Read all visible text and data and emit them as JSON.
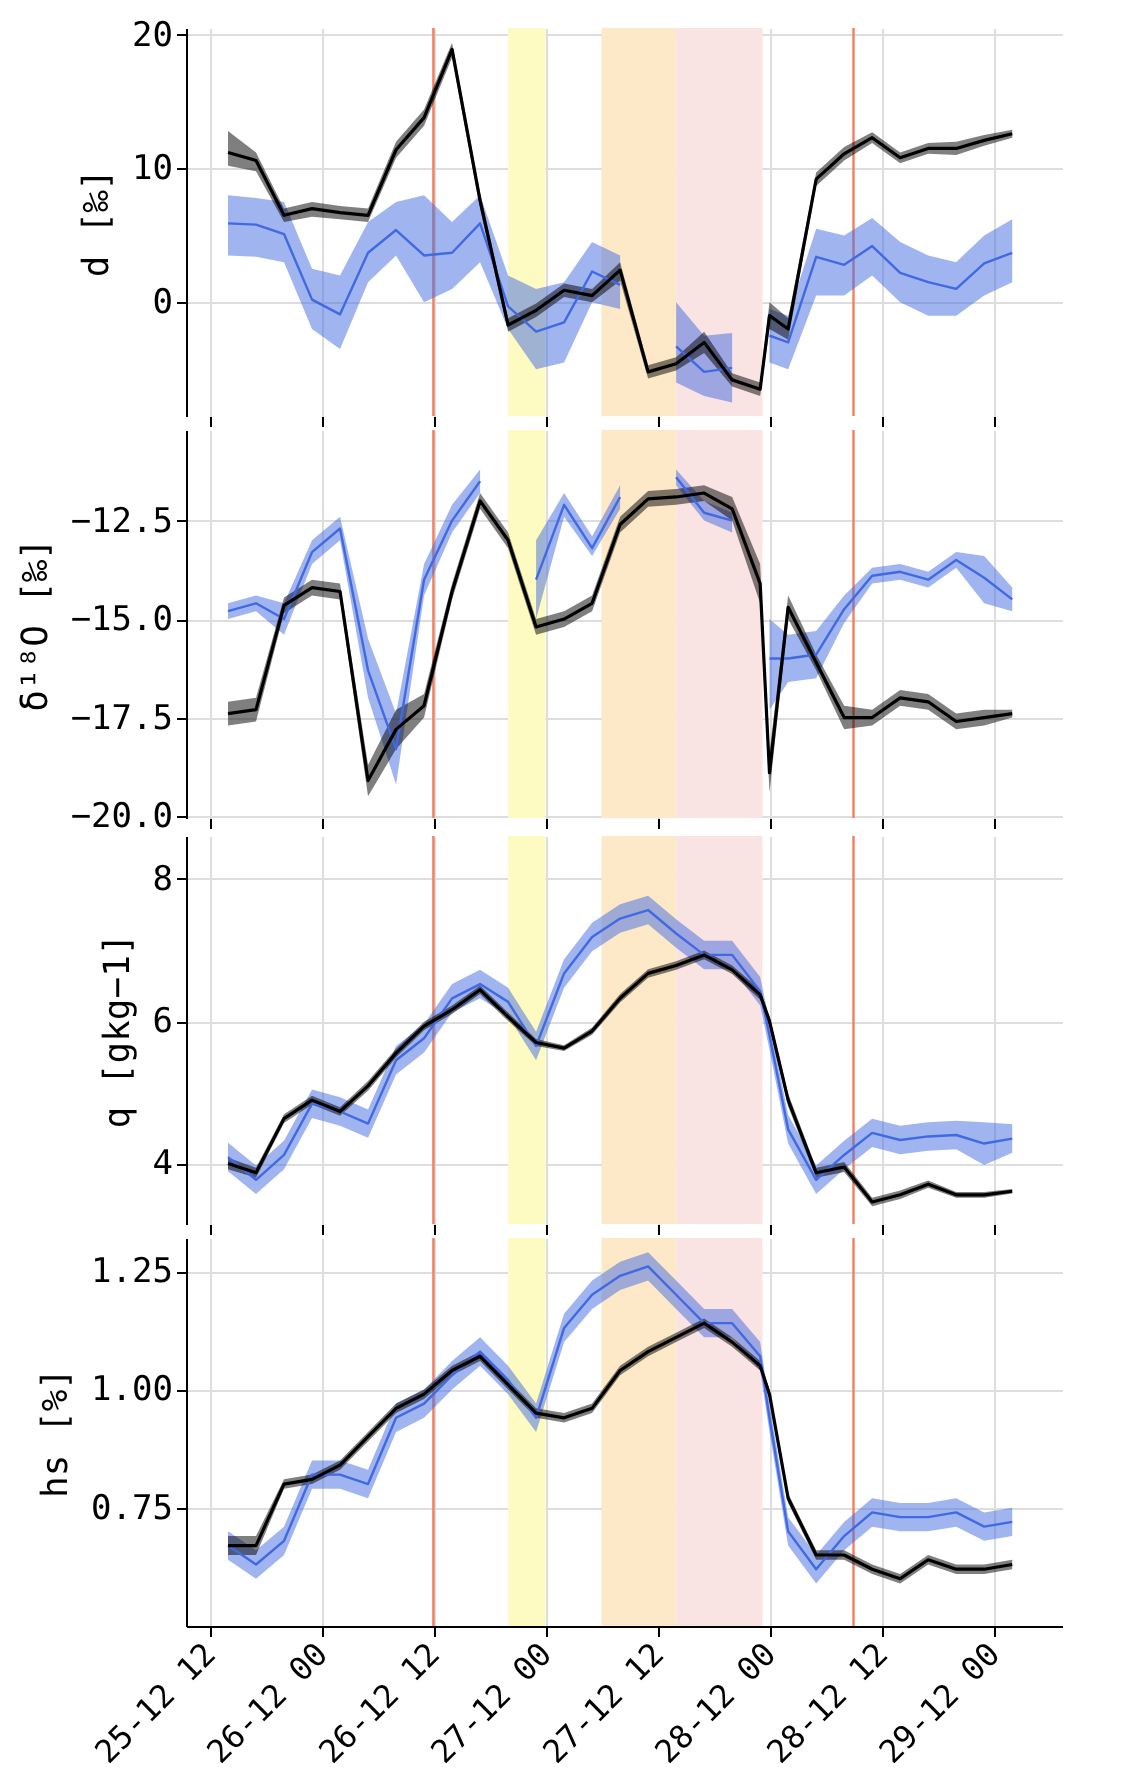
{
  "chart_data": [
    {
      "type": "line",
      "ylabel": "d [‰]",
      "tick_labels": "y",
      "grid": true,
      "x": [
        "--12-25T14:00",
        "--12-25T17:00",
        "--12-25T20:00",
        "--12-25T23:00",
        "--12-26T02:00",
        "--12-26T05:00",
        "--12-26T08:00",
        "--12-26T11:00",
        "--12-26T14:00",
        "--12-26T17:00",
        "--12-26T20:00",
        "--12-26T23:00",
        "--12-27T02:00",
        "--12-27T05:00",
        "--12-27T08:00",
        "--12-27T11:00",
        "--12-27T14:00",
        "--12-27T17:00",
        "--12-27T20:00",
        "--12-27T23:00",
        "--12-28T00:00",
        "--12-28T02:00",
        "--12-28T05:00",
        "--12-28T08:00",
        "--12-28T11:00",
        "--12-28T14:00",
        "--12-28T17:00",
        "--12-28T20:00",
        "--12-28T23:00",
        "--12-29T02:00"
      ],
      "xlim": [
        "--12-25T09:30",
        "--12-29T07:20"
      ],
      "xticks": [
        {
          "value": "--12-25T12:00",
          "label": "25-12 12"
        },
        {
          "value": "--12-26T00:00",
          "label": "26-12 00"
        },
        {
          "value": "--12-26T12:00",
          "label": "26-12 12"
        },
        {
          "value": "--12-27T00:00",
          "label": "27-12 00"
        },
        {
          "value": "--12-27T12:00",
          "label": "27-12 12"
        },
        {
          "value": "--12-28T00:00",
          "label": "28-12 00"
        },
        {
          "value": "--12-28T12:00",
          "label": "28-12 12"
        },
        {
          "value": "--12-29T00:00",
          "label": "29-12 00"
        }
      ],
      "ylim": [
        -8.5,
        20.5
      ],
      "yticks": [
        0,
        10,
        20
      ],
      "ref_lines": [
        {
          "axis": "x",
          "value": "--12-26T12:00",
          "color": "#f08060"
        },
        {
          "axis": "x",
          "value": "--12-28T09:00",
          "color": "#f08060"
        }
      ],
      "bands": [
        {
          "axis": "x",
          "from": "--12-26T20:00",
          "to": "--12-27T00:00",
          "color": "#fdfbc2"
        },
        {
          "axis": "x",
          "from": "--12-27T06:00",
          "to": "--12-27T14:00",
          "color": "#fde8c8"
        },
        {
          "axis": "x",
          "from": "--12-27T14:00",
          "to": "--12-27T23:15",
          "color": "#fae3e3"
        }
      ],
      "series": [
        {
          "color": "#4169e1",
          "values": [
            5.9,
            5.8,
            5.1,
            0.2,
            -0.9,
            3.7,
            5.4,
            3.5,
            3.7,
            5.9,
            -0.3,
            -2.2,
            -1.5,
            2.3,
            1.3,
            null,
            -3.3,
            -5.2,
            -4.9,
            null,
            -2.5,
            -3.0,
            3.4,
            2.8,
            4.2,
            2.2,
            1.5,
            1.0,
            2.9,
            3.7
          ],
          "lower": [
            3.5,
            3.4,
            3.0,
            -2.0,
            -3.5,
            1.5,
            3.5,
            0.0,
            1.0,
            3.0,
            -2.0,
            -5.0,
            -4.5,
            0.0,
            -0.5,
            null,
            -6.0,
            -7.0,
            -7.5,
            null,
            -4.5,
            -5.0,
            0.5,
            0.5,
            2.0,
            0.0,
            -1.0,
            -1.0,
            0.5,
            1.5
          ],
          "upper": [
            8.0,
            7.8,
            7.5,
            2.5,
            2.0,
            6.0,
            7.5,
            8.0,
            6.0,
            8.0,
            2.0,
            1.0,
            1.5,
            4.5,
            3.5,
            null,
            0.0,
            -2.5,
            -2.3,
            null,
            -0.5,
            -1.0,
            5.5,
            5.0,
            6.3,
            4.5,
            3.5,
            3.0,
            5.0,
            6.2
          ]
        },
        {
          "color": "#000000",
          "values": [
            11.2,
            10.6,
            6.5,
            7.0,
            6.7,
            6.5,
            11.4,
            13.8,
            18.9,
            7.6,
            -1.7,
            -0.6,
            0.9,
            0.5,
            2.4,
            -5.2,
            -4.6,
            -3.0,
            -5.8,
            -6.5,
            -1.0,
            -2.0,
            9.2,
            11.1,
            12.3,
            10.8,
            11.5,
            11.5,
            12.1,
            12.6
          ],
          "lower": [
            10.2,
            9.8,
            6.0,
            6.4,
            6.2,
            6.0,
            10.8,
            13.2,
            18.3,
            7.0,
            -2.2,
            -1.1,
            0.4,
            0.0,
            1.6,
            -5.7,
            -5.1,
            -3.8,
            -6.3,
            -7.0,
            -2.0,
            -2.8,
            8.7,
            10.6,
            11.9,
            10.4,
            11.1,
            11.0,
            11.7,
            12.3
          ],
          "upper": [
            12.8,
            11.2,
            7.0,
            7.5,
            7.2,
            7.0,
            12.0,
            14.4,
            19.4,
            8.2,
            -1.2,
            -0.1,
            1.4,
            1.0,
            3.0,
            -4.7,
            -4.1,
            -2.2,
            -5.3,
            -6.0,
            0.0,
            -1.2,
            9.7,
            11.6,
            12.7,
            11.2,
            11.9,
            12.0,
            12.5,
            12.9
          ]
        }
      ]
    },
    {
      "type": "line",
      "ylabel": "δ¹⁸O [‰]",
      "tick_labels": "y",
      "grid": true,
      "x": [
        "--12-25T14:00",
        "--12-25T17:00",
        "--12-25T20:00",
        "--12-25T23:00",
        "--12-26T02:00",
        "--12-26T05:00",
        "--12-26T08:00",
        "--12-26T11:00",
        "--12-26T14:00",
        "--12-26T17:00",
        "--12-26T20:00",
        "--12-26T23:00",
        "--12-27T02:00",
        "--12-27T05:00",
        "--12-27T08:00",
        "--12-27T11:00",
        "--12-27T14:00",
        "--12-27T17:00",
        "--12-27T20:00",
        "--12-27T23:00",
        "--12-28T00:00",
        "--12-28T02:00",
        "--12-28T05:00",
        "--12-28T08:00",
        "--12-28T11:00",
        "--12-28T14:00",
        "--12-28T17:00",
        "--12-28T20:00",
        "--12-28T23:00",
        "--12-29T02:00"
      ],
      "xlim": [
        "--12-25T09:30",
        "--12-29T07:20"
      ],
      "xticks": [
        {
          "value": "--12-25T12:00",
          "label": "25-12 12"
        },
        {
          "value": "--12-26T00:00",
          "label": "26-12 00"
        },
        {
          "value": "--12-26T12:00",
          "label": "26-12 12"
        },
        {
          "value": "--12-27T00:00",
          "label": "27-12 00"
        },
        {
          "value": "--12-27T12:00",
          "label": "27-12 12"
        },
        {
          "value": "--12-28T00:00",
          "label": "28-12 00"
        },
        {
          "value": "--12-28T12:00",
          "label": "28-12 12"
        },
        {
          "value": "--12-29T00:00",
          "label": "29-12 00"
        }
      ],
      "ylim": [
        -20.05,
        -10.2
      ],
      "yticks": [
        {
          "value": -20,
          "label": "−20.0"
        },
        {
          "value": -17.5,
          "label": "−17.5"
        },
        {
          "value": -15,
          "label": "−15.0"
        },
        {
          "value": -12.5,
          "label": "−12.5"
        }
      ],
      "ref_lines": [
        {
          "axis": "x",
          "value": "--12-26T12:00",
          "color": "#f08060"
        },
        {
          "axis": "x",
          "value": "--12-28T09:00",
          "color": "#f08060"
        }
      ],
      "bands": [
        {
          "axis": "x",
          "from": "--12-26T20:00",
          "to": "--12-27T00:00",
          "color": "#fdfbc2"
        },
        {
          "axis": "x",
          "from": "--12-27T06:00",
          "to": "--12-27T14:00",
          "color": "#fde8c8"
        },
        {
          "axis": "x",
          "from": "--12-27T14:00",
          "to": "--12-27T23:15",
          "color": "#fae3e3"
        }
      ],
      "series": [
        {
          "color": "#4169e1",
          "values": [
            -14.8,
            -14.6,
            -15.0,
            -13.3,
            -12.7,
            -16.3,
            -18.3,
            -14.0,
            -12.5,
            -11.5,
            null,
            -14.0,
            -12.1,
            -13.2,
            -11.9,
            null,
            -11.4,
            -12.3,
            -12.5,
            null,
            -16.0,
            -16.0,
            -15.9,
            -14.75,
            -13.9,
            -13.8,
            -14.0,
            -13.5,
            -13.95,
            -14.5
          ],
          "lower": [
            -15.0,
            -14.8,
            -15.4,
            -13.6,
            -13.0,
            -17.0,
            -19.2,
            -14.4,
            -12.8,
            -11.8,
            null,
            -15.0,
            -12.4,
            -13.4,
            -12.2,
            null,
            -11.6,
            -12.5,
            -12.8,
            null,
            -17.3,
            -16.6,
            -16.5,
            -15.1,
            -14.1,
            -14.0,
            -14.2,
            -13.7,
            -14.6,
            -14.8
          ],
          "upper": [
            -14.6,
            -14.4,
            -14.6,
            -13.0,
            -12.4,
            -15.5,
            -17.4,
            -13.6,
            -12.1,
            -11.2,
            null,
            -13.0,
            -11.8,
            -12.9,
            -11.6,
            null,
            -11.2,
            -12.0,
            -12.3,
            null,
            -15.0,
            -15.4,
            -15.3,
            -14.4,
            -13.7,
            -13.6,
            -13.8,
            -13.3,
            -13.4,
            -14.2
          ]
        },
        {
          "color": "#000000",
          "values": [
            -17.4,
            -17.3,
            -14.65,
            -14.2,
            -14.3,
            -19.1,
            -17.8,
            -17.2,
            -14.3,
            -12.0,
            -13.0,
            -15.2,
            -15.0,
            -14.6,
            -12.6,
            -11.95,
            -11.9,
            -11.8,
            -12.2,
            -14.1,
            -18.9,
            -14.7,
            -16.1,
            -17.5,
            -17.5,
            -17.0,
            -17.1,
            -17.6,
            -17.5,
            -17.4
          ],
          "lower": [
            -17.7,
            -17.6,
            -14.85,
            -14.4,
            -14.5,
            -19.5,
            -18.3,
            -17.5,
            -14.5,
            -12.2,
            -13.2,
            -15.4,
            -15.2,
            -14.8,
            -12.8,
            -12.15,
            -12.1,
            -12.0,
            -12.5,
            -14.6,
            -19.4,
            -15.0,
            -16.3,
            -17.8,
            -17.7,
            -17.2,
            -17.3,
            -17.8,
            -17.7,
            -17.5
          ],
          "upper": [
            -17.1,
            -17.0,
            -14.45,
            -14.0,
            -14.1,
            -18.7,
            -17.3,
            -16.9,
            -14.1,
            -11.8,
            -12.8,
            -15.0,
            -14.8,
            -14.4,
            -12.4,
            -11.75,
            -11.7,
            -11.6,
            -11.9,
            -13.6,
            -18.4,
            -14.4,
            -15.9,
            -17.2,
            -17.3,
            -16.8,
            -16.9,
            -17.4,
            -17.3,
            -17.3
          ]
        }
      ]
    },
    {
      "type": "line",
      "ylabel": "q [gkg−1]",
      "tick_labels": "y",
      "grid": true,
      "x": [
        "--12-25T14:00",
        "--12-25T17:00",
        "--12-25T20:00",
        "--12-25T23:00",
        "--12-26T02:00",
        "--12-26T05:00",
        "--12-26T08:00",
        "--12-26T11:00",
        "--12-26T14:00",
        "--12-26T17:00",
        "--12-26T20:00",
        "--12-26T23:00",
        "--12-27T02:00",
        "--12-27T05:00",
        "--12-27T08:00",
        "--12-27T11:00",
        "--12-27T14:00",
        "--12-27T17:00",
        "--12-27T20:00",
        "--12-27T23:00",
        "--12-28T00:00",
        "--12-28T02:00",
        "--12-28T05:00",
        "--12-28T08:00",
        "--12-28T11:00",
        "--12-28T14:00",
        "--12-28T17:00",
        "--12-28T20:00",
        "--12-28T23:00",
        "--12-29T02:00"
      ],
      "xlim": [
        "--12-25T09:30",
        "--12-29T07:20"
      ],
      "xticks": [
        {
          "value": "--12-25T12:00",
          "label": "25-12 12"
        },
        {
          "value": "--12-26T00:00",
          "label": "26-12 00"
        },
        {
          "value": "--12-26T12:00",
          "label": "26-12 12"
        },
        {
          "value": "--12-27T00:00",
          "label": "27-12 00"
        },
        {
          "value": "--12-27T12:00",
          "label": "27-12 12"
        },
        {
          "value": "--12-28T00:00",
          "label": "28-12 00"
        },
        {
          "value": "--12-28T12:00",
          "label": "28-12 12"
        },
        {
          "value": "--12-29T00:00",
          "label": "29-12 00"
        }
      ],
      "ylim": [
        3.15,
        8.6
      ],
      "yticks": [
        4,
        6,
        8
      ],
      "ref_lines": [
        {
          "axis": "x",
          "value": "--12-26T12:00",
          "color": "#f08060"
        },
        {
          "axis": "x",
          "value": "--12-28T09:00",
          "color": "#f08060"
        }
      ],
      "bands": [
        {
          "axis": "x",
          "from": "--12-26T20:00",
          "to": "--12-27T00:00",
          "color": "#fdfbc2"
        },
        {
          "axis": "x",
          "from": "--12-27T06:00",
          "to": "--12-27T14:00",
          "color": "#fde8c8"
        },
        {
          "axis": "x",
          "from": "--12-27T14:00",
          "to": "--12-27T23:15",
          "color": "#fae3e3"
        }
      ],
      "series": [
        {
          "color": "#4169e1",
          "values": [
            4.09,
            3.77,
            4.12,
            4.84,
            4.73,
            4.56,
            5.45,
            5.76,
            6.32,
            6.52,
            6.27,
            5.65,
            6.67,
            7.18,
            7.44,
            7.56,
            7.23,
            6.93,
            6.93,
            6.42,
            5.8,
            4.48,
            3.77,
            4.12,
            4.43,
            4.33,
            4.38,
            4.4,
            4.28,
            4.35
          ],
          "lower": [
            3.89,
            3.57,
            3.92,
            4.64,
            4.53,
            4.36,
            5.25,
            5.56,
            6.12,
            6.32,
            6.07,
            5.45,
            6.47,
            6.98,
            7.24,
            7.36,
            7.03,
            6.73,
            6.73,
            6.22,
            5.6,
            4.28,
            3.57,
            3.92,
            4.23,
            4.13,
            4.18,
            4.2,
            3.98,
            4.15
          ],
          "upper": [
            4.29,
            3.97,
            4.32,
            5.04,
            4.93,
            4.76,
            5.65,
            5.96,
            6.52,
            6.72,
            6.47,
            5.85,
            6.87,
            7.38,
            7.64,
            7.76,
            7.43,
            7.13,
            7.13,
            6.62,
            6.0,
            4.68,
            3.97,
            4.32,
            4.63,
            4.53,
            4.58,
            4.6,
            4.58,
            4.55
          ]
        },
        {
          "color": "#000000",
          "values": [
            4.0,
            3.87,
            4.63,
            4.89,
            4.73,
            5.09,
            5.55,
            5.93,
            6.16,
            6.44,
            6.06,
            5.7,
            5.62,
            5.86,
            6.32,
            6.67,
            6.78,
            6.93,
            6.72,
            6.37,
            6.0,
            4.89,
            3.87,
            3.95,
            3.46,
            3.56,
            3.71,
            3.56,
            3.56,
            3.61
          ],
          "lower": [
            3.92,
            3.8,
            4.57,
            4.83,
            4.67,
            5.02,
            5.49,
            5.87,
            6.1,
            6.38,
            6.0,
            5.65,
            5.58,
            5.81,
            6.26,
            6.61,
            6.72,
            6.87,
            6.66,
            6.3,
            5.93,
            4.8,
            3.8,
            3.88,
            3.4,
            3.5,
            3.66,
            3.52,
            3.52,
            3.58
          ],
          "upper": [
            4.08,
            3.94,
            4.69,
            4.95,
            4.79,
            5.16,
            5.61,
            5.99,
            6.22,
            6.5,
            6.12,
            5.75,
            5.66,
            5.91,
            6.38,
            6.73,
            6.84,
            6.99,
            6.78,
            6.44,
            6.07,
            4.98,
            3.94,
            4.02,
            3.52,
            3.62,
            3.76,
            3.6,
            3.6,
            3.64
          ]
        }
      ]
    },
    {
      "type": "line",
      "ylabel": "hs [%]",
      "grid": true,
      "x": [
        "--12-25T14:00",
        "--12-25T17:00",
        "--12-25T20:00",
        "--12-25T23:00",
        "--12-26T02:00",
        "--12-26T05:00",
        "--12-26T08:00",
        "--12-26T11:00",
        "--12-26T14:00",
        "--12-26T17:00",
        "--12-26T20:00",
        "--12-26T23:00",
        "--12-27T02:00",
        "--12-27T05:00",
        "--12-27T08:00",
        "--12-27T11:00",
        "--12-27T14:00",
        "--12-27T17:00",
        "--12-27T20:00",
        "--12-27T23:00",
        "--12-28T00:00",
        "--12-28T02:00",
        "--12-28T05:00",
        "--12-28T08:00",
        "--12-28T11:00",
        "--12-28T14:00",
        "--12-28T17:00",
        "--12-28T20:00",
        "--12-28T23:00",
        "--12-29T02:00"
      ],
      "xlim": [
        "--12-25T09:30",
        "--12-29T07:20"
      ],
      "xticks": [
        {
          "value": "--12-25T12:00",
          "label": "25-12 12"
        },
        {
          "value": "--12-26T00:00",
          "label": "26-12 00"
        },
        {
          "value": "--12-26T12:00",
          "label": "26-12 12"
        },
        {
          "value": "--12-27T00:00",
          "label": "27-12 00"
        },
        {
          "value": "--12-27T12:00",
          "label": "27-12 12"
        },
        {
          "value": "--12-28T00:00",
          "label": "28-12 00"
        },
        {
          "value": "--12-28T12:00",
          "label": "28-12 12"
        },
        {
          "value": "--12-29T00:00",
          "label": "29-12 00"
        }
      ],
      "ylim": [
        0.5,
        1.32
      ],
      "yticks": [
        {
          "value": 0.75,
          "label": "0.75"
        },
        {
          "value": 1,
          "label": "1.00"
        },
        {
          "value": 1.25,
          "label": "1.25"
        }
      ],
      "ref_lines": [
        {
          "axis": "x",
          "value": "--12-26T12:00",
          "color": "#f08060"
        },
        {
          "axis": "x",
          "value": "--12-28T09:00",
          "color": "#f08060"
        }
      ],
      "bands": [
        {
          "axis": "x",
          "from": "--12-26T20:00",
          "to": "--12-27T00:00",
          "color": "#fdfbc2"
        },
        {
          "axis": "x",
          "from": "--12-27T06:00",
          "to": "--12-27T14:00",
          "color": "#fde8c8"
        },
        {
          "axis": "x",
          "from": "--12-27T14:00",
          "to": "--12-27T23:15",
          "color": "#fae3e3"
        }
      ],
      "series": [
        {
          "color": "#4169e1",
          "values": [
            0.67,
            0.63,
            0.68,
            0.82,
            0.82,
            0.8,
            0.94,
            0.97,
            1.03,
            1.08,
            1.02,
            0.94,
            1.13,
            1.2,
            1.24,
            1.26,
            1.2,
            1.14,
            1.14,
            1.07,
            0.94,
            0.7,
            0.62,
            0.69,
            0.74,
            0.73,
            0.73,
            0.74,
            0.71,
            0.72
          ],
          "lower": [
            0.64,
            0.6,
            0.65,
            0.79,
            0.79,
            0.77,
            0.91,
            0.94,
            1.0,
            1.05,
            0.99,
            0.91,
            1.1,
            1.17,
            1.21,
            1.23,
            1.17,
            1.11,
            1.11,
            1.04,
            0.91,
            0.67,
            0.59,
            0.66,
            0.71,
            0.7,
            0.7,
            0.71,
            0.68,
            0.69
          ],
          "upper": [
            0.7,
            0.66,
            0.71,
            0.85,
            0.85,
            0.83,
            0.97,
            1.0,
            1.06,
            1.11,
            1.05,
            0.97,
            1.16,
            1.23,
            1.27,
            1.29,
            1.23,
            1.17,
            1.17,
            1.1,
            0.97,
            0.73,
            0.65,
            0.72,
            0.77,
            0.76,
            0.76,
            0.77,
            0.74,
            0.75
          ]
        },
        {
          "color": "#000000",
          "values": [
            0.67,
            0.67,
            0.8,
            0.81,
            0.84,
            0.9,
            0.96,
            0.99,
            1.04,
            1.07,
            1.01,
            0.95,
            0.94,
            0.96,
            1.04,
            1.08,
            1.11,
            1.14,
            1.1,
            1.05,
            0.99,
            0.77,
            0.65,
            0.65,
            0.62,
            0.6,
            0.64,
            0.62,
            0.62,
            0.63
          ],
          "lower": [
            0.65,
            0.65,
            0.79,
            0.8,
            0.83,
            0.89,
            0.95,
            0.98,
            1.03,
            1.06,
            1.0,
            0.94,
            0.93,
            0.95,
            1.03,
            1.07,
            1.1,
            1.13,
            1.09,
            1.04,
            0.98,
            0.76,
            0.64,
            0.64,
            0.61,
            0.59,
            0.63,
            0.61,
            0.61,
            0.62
          ],
          "upper": [
            0.69,
            0.69,
            0.81,
            0.82,
            0.85,
            0.91,
            0.97,
            1.0,
            1.05,
            1.08,
            1.02,
            0.96,
            0.95,
            0.97,
            1.05,
            1.09,
            1.12,
            1.15,
            1.11,
            1.06,
            1.0,
            0.78,
            0.66,
            0.66,
            0.63,
            0.61,
            0.65,
            0.63,
            0.63,
            0.64
          ]
        }
      ]
    }
  ]
}
